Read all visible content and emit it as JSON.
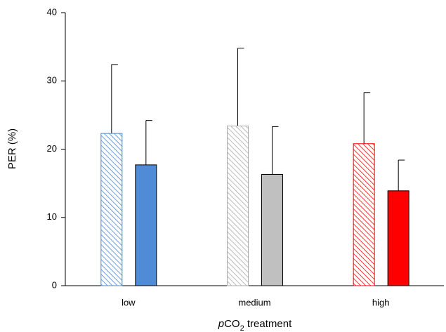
{
  "chart_data": {
    "type": "bar",
    "ylabel": "PER (%)",
    "xlabel": {
      "italic": "p",
      "main": "CO",
      "sub": "2",
      "rest": " treatment"
    },
    "categories": [
      "low",
      "medium",
      "high"
    ],
    "ylim": [
      0,
      40
    ],
    "yticks": [
      0,
      10,
      20,
      30,
      40
    ],
    "series": [
      {
        "hatch": true,
        "colors": [
          "#4a86d0",
          "#aaaaaa",
          "#ff0000"
        ],
        "values": [
          22.3,
          23.4,
          20.8
        ],
        "errors": [
          10.1,
          11.4,
          7.5
        ]
      },
      {
        "hatch": false,
        "colors": [
          "#4f8bd6",
          "#c0c0c0",
          "#ff0000"
        ],
        "values": [
          17.7,
          16.3,
          13.9
        ],
        "errors": [
          6.5,
          7.0,
          4.5
        ]
      }
    ]
  }
}
